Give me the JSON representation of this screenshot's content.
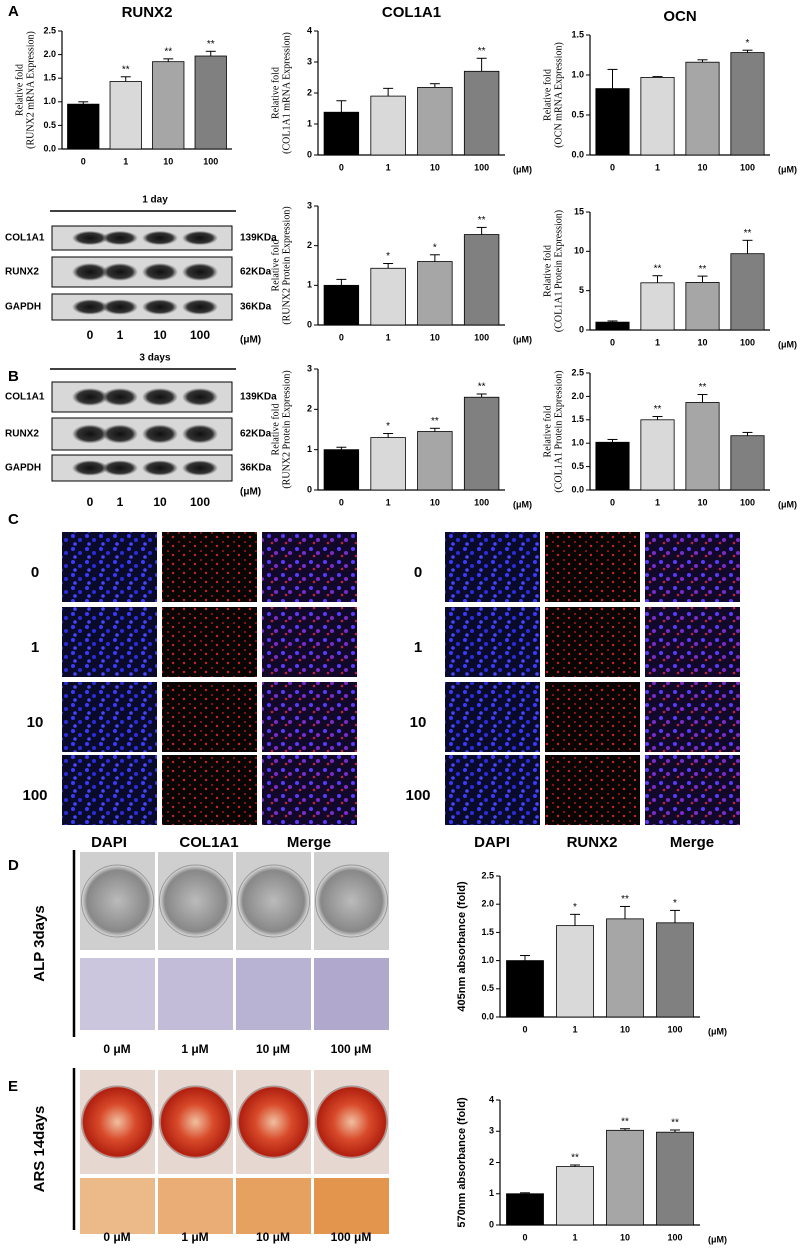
{
  "panel_labels": [
    "A",
    "B",
    "C",
    "D",
    "E"
  ],
  "chart_data": [
    {
      "type": "bar",
      "title": "RUNX2",
      "ylabel": [
        "Relative fold",
        "(RUNX2 mRNA Expression)"
      ],
      "categories": [
        "0",
        "1",
        "10",
        "100"
      ],
      "values": [
        0.95,
        1.43,
        1.85,
        1.97
      ],
      "errors": [
        0.05,
        0.1,
        0.06,
        0.1
      ],
      "annotations": [
        null,
        "**",
        "**",
        "**"
      ],
      "colors": [
        "#000000",
        "#d9d9d9",
        "#a6a6a6",
        "#808080"
      ],
      "ylim": [
        0,
        2.5
      ],
      "yticks": [
        {
          "value": 0,
          "label": "0.0"
        },
        0.5,
        {
          "value": 1,
          "label": "1.0"
        },
        1.5,
        {
          "value": 2,
          "label": "2.0"
        },
        2.5
      ]
    },
    {
      "type": "bar",
      "title": "COL1A1",
      "ylabel": [
        "Relative fold",
        "(COL1A1 mRNA Expression)"
      ],
      "xunit": "(μM)",
      "categories": [
        "0",
        "1",
        "10",
        "100"
      ],
      "values": [
        1.38,
        1.9,
        2.18,
        2.7
      ],
      "errors": [
        0.37,
        0.25,
        0.12,
        0.42
      ],
      "annotations": [
        null,
        null,
        null,
        "**"
      ],
      "colors": [
        "#000000",
        "#d9d9d9",
        "#a6a6a6",
        "#808080"
      ],
      "ylim": [
        0,
        4
      ],
      "yticks": [
        0,
        1,
        2,
        3,
        4
      ]
    },
    {
      "type": "bar",
      "title": "OCN",
      "ylabel": [
        "Relative fold",
        "(OCN mRNA Expression)"
      ],
      "xunit": "(μM)",
      "categories": [
        "0",
        "1",
        "10",
        "100"
      ],
      "values": [
        0.83,
        0.97,
        1.16,
        1.28
      ],
      "errors": [
        0.24,
        0.01,
        0.03,
        0.03
      ],
      "annotations": [
        null,
        null,
        null,
        "*"
      ],
      "colors": [
        "#000000",
        "#d9d9d9",
        "#a6a6a6",
        "#808080"
      ],
      "ylim": [
        0,
        1.5
      ],
      "yticks": [
        {
          "value": 0,
          "label": "0.0"
        },
        0.5,
        {
          "value": 1,
          "label": "1.0"
        },
        1.5
      ]
    },
    {
      "type": "bar",
      "ylabel": [
        "Relative fold",
        "(RUNX2 Protein Expression)"
      ],
      "xunit": "(μM)",
      "categories": [
        "0",
        "1",
        "10",
        "100"
      ],
      "values": [
        1.0,
        1.43,
        1.6,
        2.28
      ],
      "errors": [
        0.15,
        0.12,
        0.17,
        0.18
      ],
      "annotations": [
        null,
        "*",
        "*",
        "**"
      ],
      "colors": [
        "#000000",
        "#d9d9d9",
        "#a6a6a6",
        "#808080"
      ],
      "ylim": [
        0,
        3
      ],
      "yticks": [
        0,
        1,
        2,
        3
      ]
    },
    {
      "type": "bar",
      "ylabel": [
        "Relative fold",
        "(COL1A1 Protein Expression)"
      ],
      "xunit": "(μM)",
      "categories": [
        "0",
        "1",
        "10",
        "100"
      ],
      "values": [
        1.0,
        6.0,
        6.05,
        9.7
      ],
      "errors": [
        0.15,
        0.9,
        0.8,
        1.7
      ],
      "annotations": [
        null,
        "**",
        "**",
        "**"
      ],
      "colors": [
        "#000000",
        "#d9d9d9",
        "#a6a6a6",
        "#808080"
      ],
      "ylim": [
        0,
        15
      ],
      "yticks": [
        0,
        5,
        10,
        15
      ]
    },
    {
      "type": "bar",
      "ylabel": [
        "Relative fold",
        "(RUNX2 Protein Expression)"
      ],
      "xunit": "(μM)",
      "categories": [
        "0",
        "1",
        "10",
        "100"
      ],
      "values": [
        1.0,
        1.3,
        1.45,
        2.3
      ],
      "errors": [
        0.06,
        0.1,
        0.08,
        0.08
      ],
      "annotations": [
        null,
        "*",
        "**",
        "**"
      ],
      "colors": [
        "#000000",
        "#d9d9d9",
        "#a6a6a6",
        "#808080"
      ],
      "ylim": [
        0,
        3
      ],
      "yticks": [
        0,
        1,
        2,
        3
      ]
    },
    {
      "type": "bar",
      "ylabel": [
        "Relative fold",
        "(COL1A1 Protein Expression)"
      ],
      "xunit": "(μM)",
      "categories": [
        "0",
        "1",
        "10",
        "100"
      ],
      "values": [
        1.02,
        1.5,
        1.87,
        1.16
      ],
      "errors": [
        0.06,
        0.07,
        0.17,
        0.07
      ],
      "annotations": [
        null,
        "**",
        "**",
        null
      ],
      "colors": [
        "#000000",
        "#d9d9d9",
        "#a6a6a6",
        "#808080"
      ],
      "ylim": [
        0,
        2.5
      ],
      "yticks": [
        {
          "value": 0,
          "label": "0.0"
        },
        0.5,
        {
          "value": 1,
          "label": "1.0"
        },
        1.5,
        {
          "value": 2,
          "label": "2.0"
        },
        2.5
      ]
    },
    {
      "type": "bar",
      "ylabel": "405nm absorbance (fold)",
      "xunit": "(μM)",
      "categories": [
        "0",
        "1",
        "10",
        "100"
      ],
      "values": [
        1.0,
        1.62,
        1.74,
        1.67
      ],
      "errors": [
        0.09,
        0.2,
        0.22,
        0.22
      ],
      "annotations": [
        null,
        "*",
        "**",
        "*"
      ],
      "colors": [
        "#000000",
        "#d9d9d9",
        "#a6a6a6",
        "#808080"
      ],
      "ylim": [
        0,
        2.5
      ],
      "yticks": [
        {
          "value": 0,
          "label": "0.0"
        },
        0.5,
        {
          "value": 1,
          "label": "1.0"
        },
        1.5,
        {
          "value": 2,
          "label": "2.0"
        },
        2.5
      ]
    },
    {
      "type": "bar",
      "ylabel": "570nm absorbance (fold)",
      "xunit": "(μM)",
      "categories": [
        "0",
        "1",
        "10",
        "100"
      ],
      "values": [
        1.0,
        1.87,
        3.03,
        2.97
      ],
      "errors": [
        0.03,
        0.05,
        0.05,
        0.07
      ],
      "annotations": [
        null,
        "**",
        "**",
        "**"
      ],
      "colors": [
        "#000000",
        "#d9d9d9",
        "#a6a6a6",
        "#808080"
      ],
      "ylim": [
        0,
        4
      ],
      "yticks": [
        0,
        1,
        2,
        3,
        4
      ]
    }
  ],
  "blots": [
    {
      "title": "1 day",
      "rows": [
        {
          "name": "COL1A1",
          "size": "139KDa"
        },
        {
          "name": "RUNX2",
          "size": "62KDa"
        },
        {
          "name": "GAPDH",
          "size": "36KDa"
        }
      ],
      "lanes": [
        "0",
        "1",
        "10",
        "100"
      ],
      "unit": "(μM)"
    },
    {
      "title": "3 days",
      "rows": [
        {
          "name": "COL1A1",
          "size": "139KDa"
        },
        {
          "name": "RUNX2",
          "size": "62KDa"
        },
        {
          "name": "GAPDH",
          "size": "36KDa"
        }
      ],
      "lanes": [
        "0",
        "1",
        "10",
        "100"
      ],
      "unit": "(μM)"
    }
  ],
  "immunofluorescence": [
    {
      "rows": [
        "0",
        "1",
        "10",
        "100"
      ],
      "columns": [
        "DAPI",
        "COL1A1",
        "Merge"
      ]
    },
    {
      "rows": [
        "0",
        "1",
        "10",
        "100"
      ],
      "columns": [
        "DAPI",
        "RUNX2",
        "Merge"
      ]
    }
  ],
  "stains": [
    {
      "label": "ALP  3days",
      "doses": [
        "0 μM",
        "1 μM",
        "10 μM",
        "100 μM"
      ]
    },
    {
      "label": "ARS  14days",
      "doses": [
        "0 μM",
        "1 μM",
        "10 μM",
        "100 μM"
      ]
    }
  ]
}
